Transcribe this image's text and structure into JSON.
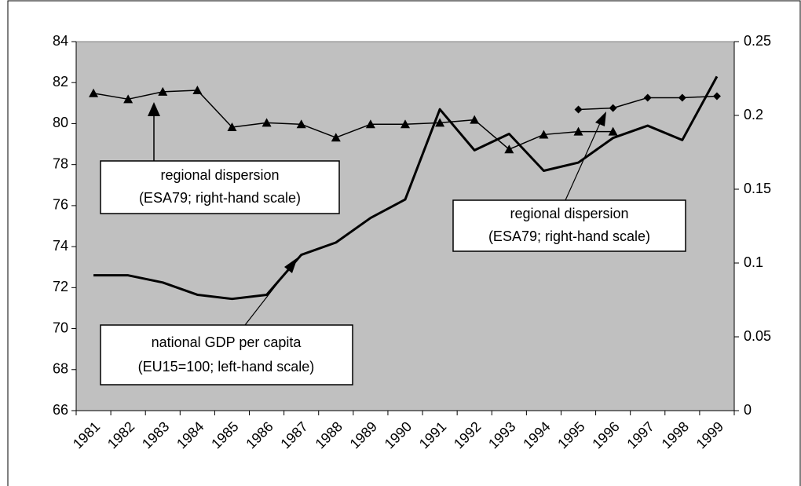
{
  "chart_data": {
    "type": "line",
    "categories": [
      "1981",
      "1982",
      "1983",
      "1984",
      "1985",
      "1986",
      "1987",
      "1988",
      "1989",
      "1990",
      "1991",
      "1992",
      "1993",
      "1994",
      "1995",
      "1996",
      "1997",
      "1998",
      "1999"
    ],
    "series": [
      {
        "color": "#000000",
        "marker": "none",
        "width": 3,
        "values": [
          72.6,
          72.6,
          72.25,
          71.65,
          71.45,
          71.65,
          73.6,
          74.2,
          75.4,
          76.3,
          80.7,
          78.7,
          79.5,
          77.7,
          78.1,
          79.3,
          79.9,
          79.2,
          82.3
        ]
      },
      {
        "color": "#000000",
        "marker": "triangle",
        "width": 1.5,
        "axis": "y2",
        "values": [
          0.215,
          0.211,
          0.216,
          0.217,
          0.192,
          0.195,
          0.194,
          0.185,
          0.194,
          0.194,
          0.195,
          0.197,
          0.177,
          0.187,
          0.189,
          0.189,
          null,
          null,
          null
        ]
      },
      {
        "color": "#000000",
        "marker": "diamond",
        "width": 1.5,
        "axis": "y2",
        "values": [
          null,
          null,
          null,
          null,
          null,
          null,
          null,
          null,
          null,
          null,
          null,
          null,
          null,
          null,
          0.204,
          0.205,
          0.212,
          0.212,
          0.213
        ]
      }
    ],
    "ylim": [
      66,
      84
    ],
    "yticks": [
      66,
      68,
      70,
      72,
      74,
      76,
      78,
      80,
      82,
      84
    ],
    "y2lim": [
      0,
      0.25
    ],
    "y2ticks": [
      0,
      0.05,
      0.1,
      0.15,
      0.2,
      0.25
    ],
    "plot_background": "#c0c0c0",
    "annotations": [
      {
        "lines": [
          "regional dispersion",
          "(ESA79; right-hand scale)"
        ]
      },
      {
        "lines": [
          "regional dispersion",
          "(ESA79; right-hand scale)"
        ]
      },
      {
        "lines": [
          "national GDP per capita",
          "(EU15=100; left-hand scale)"
        ]
      }
    ]
  }
}
